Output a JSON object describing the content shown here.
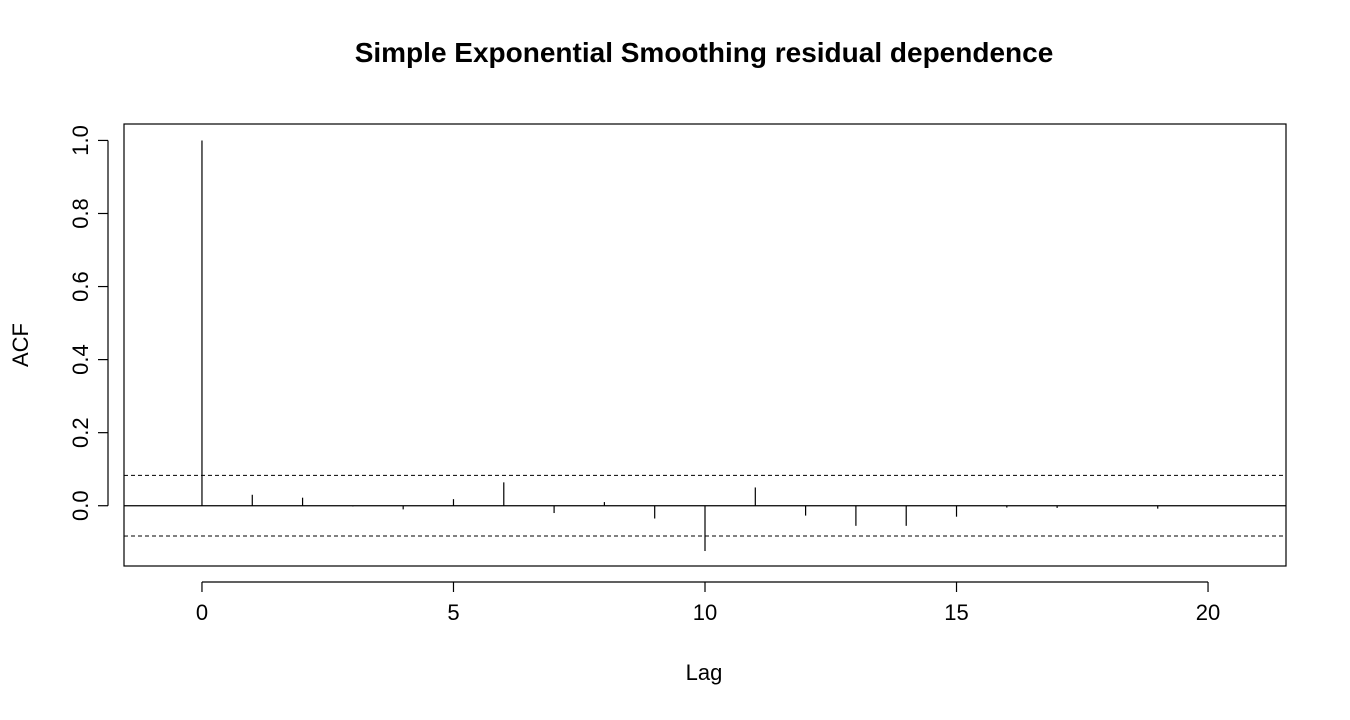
{
  "chart_data": {
    "type": "bar",
    "title": "Simple Exponential Smoothing residual dependence",
    "xlabel": "Lag",
    "ylabel": "ACF",
    "xlim": [
      -1.55,
      21.55
    ],
    "ylim": [
      -0.165,
      1.045
    ],
    "x_ticks": [
      0,
      5,
      10,
      15,
      20
    ],
    "x_tick_labels": [
      "0",
      "5",
      "10",
      "15",
      "20"
    ],
    "y_ticks": [
      0.0,
      0.2,
      0.4,
      0.6,
      0.8,
      1.0
    ],
    "y_tick_labels": [
      "0.0",
      "0.2",
      "0.4",
      "0.6",
      "0.8",
      "1.0"
    ],
    "grid": false,
    "legend": "none",
    "zero_line": true,
    "confidence_bounds": [
      0.083,
      -0.083
    ],
    "series": [
      {
        "x": [
          0,
          1,
          2,
          3,
          4,
          5,
          6,
          7,
          8,
          9,
          10,
          11,
          12,
          13,
          14,
          15,
          16,
          17,
          18,
          19,
          20
        ],
        "values": [
          1.0,
          0.03,
          0.022,
          -0.002,
          -0.01,
          0.018,
          0.064,
          -0.02,
          0.01,
          -0.035,
          -0.124,
          0.05,
          -0.027,
          -0.055,
          -0.055,
          -0.03,
          -0.005,
          -0.006,
          0.0,
          -0.008,
          0.0
        ]
      }
    ],
    "colors": {
      "bars": "#000000",
      "axes": "#000000",
      "bounds": "#000000",
      "background": "#ffffff"
    }
  }
}
